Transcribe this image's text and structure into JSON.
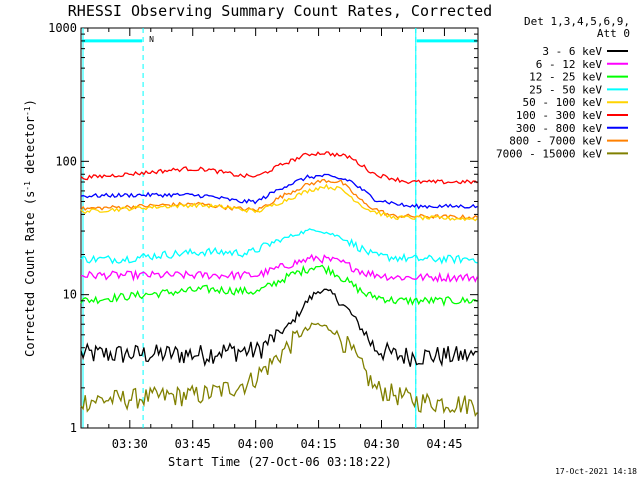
{
  "chart_data": {
    "type": "line",
    "title": "RHESSI Observing Summary Count Rates, Corrected",
    "xlabel": "Start Time (27-Oct-06 03:18:22)",
    "ylabel_parts": [
      "Corrected Count Rate (s",
      "-1",
      " detector",
      "-1",
      ")"
    ],
    "yscale": "log",
    "ylim": [
      1,
      1000
    ],
    "xlim": [
      "03:18:22",
      "04:53:00"
    ],
    "x_ticks": [
      "03:30",
      "03:45",
      "04:00",
      "04:15",
      "04:30",
      "04:45"
    ],
    "y_ticks": [
      "1",
      "10",
      "100",
      "1000"
    ],
    "legend_header": [
      "Det 1,3,4,5,6,9,",
      "Att 0"
    ],
    "legend_position": "right",
    "timestamp": "17-Oct-2021 14:18",
    "night_marker": "N",
    "night_intervals": [
      [
        "03:18:22",
        "03:33:10"
      ],
      [
        "04:38:10",
        "04:53:00"
      ]
    ],
    "time_axis": {
      "start": "03:18:22",
      "end": "04:53:00",
      "step_minutes": 0.5
    },
    "series": [
      {
        "name": "3 - 6 keV",
        "color": "#000000",
        "profile": [
          [
            0,
            3.6
          ],
          [
            30,
            3.6
          ],
          [
            33,
            3.8
          ],
          [
            42,
            3.8
          ],
          [
            50,
            6
          ],
          [
            54,
            9
          ],
          [
            57,
            11
          ],
          [
            60,
            10
          ],
          [
            64,
            7.5
          ],
          [
            70,
            4
          ],
          [
            75,
            3.5
          ],
          [
            95,
            3.5
          ]
        ]
      },
      {
        "name": "6 - 12 keV",
        "color": "#ff00ff",
        "profile": [
          [
            0,
            14
          ],
          [
            30,
            14
          ],
          [
            42,
            14
          ],
          [
            50,
            17
          ],
          [
            56,
            19
          ],
          [
            62,
            17.5
          ],
          [
            68,
            14.5
          ],
          [
            75,
            13.5
          ],
          [
            95,
            13.5
          ]
        ]
      },
      {
        "name": "12 - 25 keV",
        "color": "#00ff00",
        "profile": [
          [
            0,
            9
          ],
          [
            15,
            10
          ],
          [
            30,
            11
          ],
          [
            42,
            10.5
          ],
          [
            50,
            14
          ],
          [
            56,
            16.5
          ],
          [
            60,
            15
          ],
          [
            68,
            10
          ],
          [
            75,
            9
          ],
          [
            95,
            9
          ]
        ]
      },
      {
        "name": "25 - 50 keV",
        "color": "#00ffff",
        "profile": [
          [
            0,
            18.5
          ],
          [
            10,
            18.5
          ],
          [
            20,
            20
          ],
          [
            30,
            21
          ],
          [
            40,
            20.5
          ],
          [
            45,
            24
          ],
          [
            52,
            29
          ],
          [
            56,
            31
          ],
          [
            62,
            27
          ],
          [
            70,
            19.5
          ],
          [
            80,
            18.5
          ],
          [
            95,
            18.5
          ]
        ]
      },
      {
        "name": "50 - 100 keV",
        "color": "#ffd400",
        "profile": [
          [
            0,
            42
          ],
          [
            20,
            46
          ],
          [
            28,
            47
          ],
          [
            35,
            45
          ],
          [
            42,
            42
          ],
          [
            48,
            50
          ],
          [
            54,
            60
          ],
          [
            58,
            65
          ],
          [
            62,
            62
          ],
          [
            68,
            44
          ],
          [
            74,
            38
          ],
          [
            95,
            37
          ]
        ]
      },
      {
        "name": "100 - 300 keV",
        "color": "#ff0000",
        "profile": [
          [
            0,
            75
          ],
          [
            15,
            82
          ],
          [
            25,
            88
          ],
          [
            30,
            87
          ],
          [
            38,
            78
          ],
          [
            42,
            77
          ],
          [
            48,
            95
          ],
          [
            54,
            113
          ],
          [
            58,
            116
          ],
          [
            64,
            108
          ],
          [
            70,
            80
          ],
          [
            78,
            70
          ],
          [
            95,
            70
          ]
        ]
      },
      {
        "name": "300 - 800 keV",
        "color": "#0000ff",
        "profile": [
          [
            0,
            55
          ],
          [
            15,
            56
          ],
          [
            25,
            56
          ],
          [
            30,
            55
          ],
          [
            38,
            50
          ],
          [
            42,
            50
          ],
          [
            48,
            64
          ],
          [
            54,
            76
          ],
          [
            58,
            78
          ],
          [
            64,
            72
          ],
          [
            70,
            52
          ],
          [
            78,
            46
          ],
          [
            95,
            46
          ]
        ]
      },
      {
        "name": "800 - 7000 keV",
        "color": "#ff8000",
        "profile": [
          [
            0,
            44
          ],
          [
            20,
            47
          ],
          [
            28,
            48
          ],
          [
            35,
            45
          ],
          [
            42,
            43
          ],
          [
            48,
            55
          ],
          [
            54,
            67
          ],
          [
            58,
            72
          ],
          [
            62,
            70
          ],
          [
            68,
            47
          ],
          [
            74,
            39
          ],
          [
            95,
            38
          ]
        ]
      },
      {
        "name": "7000 - 15000 keV",
        "color": "#808000",
        "profile": [
          [
            0,
            1.6
          ],
          [
            30,
            1.8
          ],
          [
            40,
            2.2
          ],
          [
            45,
            3
          ],
          [
            52,
            5
          ],
          [
            56,
            6
          ],
          [
            60,
            5.5
          ],
          [
            64,
            4
          ],
          [
            70,
            2
          ],
          [
            80,
            1.6
          ],
          [
            95,
            1.5
          ]
        ]
      }
    ]
  }
}
